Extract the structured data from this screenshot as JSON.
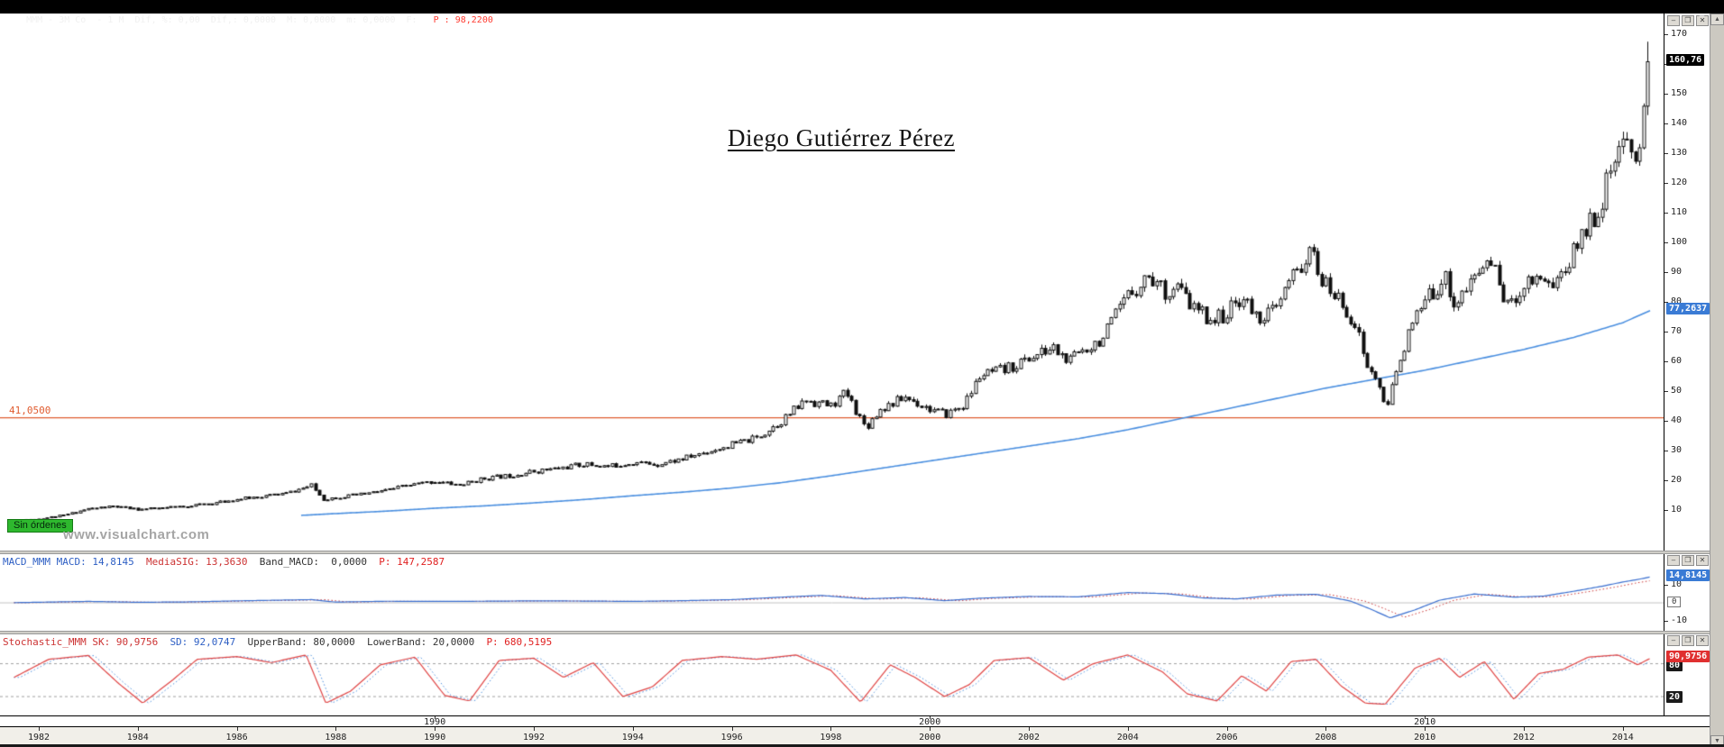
{
  "colors": {
    "accent_blue": "#3a7bd5",
    "ma_blue": "#4a8fe0",
    "macd_blue": "#3a6fd0",
    "signal_red": "#cc3333",
    "stoch_red": "#e04545",
    "stoch_blue": "#4a8fe0",
    "orange": "#e05c30",
    "green": "#2eb82e",
    "red_text": "#ff3b30",
    "band_gray": "#a0a0a0",
    "badge_black": "#000000"
  },
  "titlebar": {
    "segments": [
      {
        "text": "MMM - 3M Co  - 1 M ",
        "color": "#f0f0f0"
      },
      {
        "text": " Dif, %: 0,00  Dif,: 0,0000  M: 0,0000  m: 0,0000  F: ",
        "color": "#f0f0f0"
      },
      {
        "text": "  P : 98,2200",
        "color": "#ff3b30"
      }
    ],
    "window_controls": [
      "minimize",
      "maximize",
      "close"
    ]
  },
  "main_chart": {
    "annotation": "Diego Gutiérrez Pérez",
    "watermark": "www.visualchart.com",
    "orders_badge": "Sin órdenes",
    "hline_label": "41,0500",
    "last_price_badge": "160,76",
    "ma_badge": "77,2637",
    "axis_ticks": [
      170,
      160,
      150,
      140,
      130,
      120,
      110,
      100,
      90,
      80,
      70,
      60,
      50,
      40,
      30,
      20,
      10
    ]
  },
  "macd": {
    "header": [
      {
        "text": "MACD_MMM ",
        "color": "#2e5fc4"
      },
      {
        "text": "MACD: 14,8145  ",
        "color": "#2e5fc4"
      },
      {
        "text": "MediaSIG: 13,3630  ",
        "color": "#cc3333"
      },
      {
        "text": "Band_MACD:  0,0000  ",
        "color": "#333333"
      },
      {
        "text": "P: 147,2587",
        "color": "#e02020"
      }
    ],
    "axis_ticks": [
      10,
      0,
      -10
    ],
    "badge": "14,8145"
  },
  "stochastic": {
    "header": [
      {
        "text": "Stochastic_MMM ",
        "color": "#cc3333"
      },
      {
        "text": "SK: 90,9756  ",
        "color": "#cc3333"
      },
      {
        "text": "SD: 92,0747  ",
        "color": "#2e5fc4"
      },
      {
        "text": "UpperBand: 80,0000  ",
        "color": "#333333"
      },
      {
        "text": "LowerBand: 20,0000  ",
        "color": "#333333"
      },
      {
        "text": "P: 680,5195",
        "color": "#e02020"
      }
    ],
    "sk_badge": "90,9756",
    "upper_badge": "80",
    "lower_badge": "20"
  },
  "time_axis": {
    "years": [
      1982,
      1984,
      1986,
      1988,
      1990,
      1992,
      1994,
      1996,
      1998,
      2000,
      2002,
      2004,
      2006,
      2008,
      2010,
      2012,
      2014
    ],
    "decades": [
      1990,
      2000,
      2010
    ]
  },
  "chart_data": {
    "type": "candlestick+indicators",
    "title": "MMM - 3M Co - 1 M (monthly)",
    "x_range": [
      1981.5,
      2014.58
    ],
    "price_panel": {
      "type": "candlestick",
      "ylim": [
        4,
        172
      ],
      "yticks": [
        10,
        20,
        30,
        40,
        50,
        60,
        70,
        80,
        90,
        100,
        110,
        120,
        130,
        140,
        150,
        160,
        170
      ],
      "hline": 41.05,
      "last_close": 160.76,
      "ma_last": 77.2637,
      "close_anchors": [
        [
          1981.5,
          6.3
        ],
        [
          1982,
          7
        ],
        [
          1982.5,
          8.2
        ],
        [
          1983,
          10.4
        ],
        [
          1983.5,
          11.2
        ],
        [
          1984,
          10.2
        ],
        [
          1984.5,
          10.6
        ],
        [
          1985,
          11.4
        ],
        [
          1985.5,
          12.2
        ],
        [
          1986,
          13.6
        ],
        [
          1986.5,
          14.6
        ],
        [
          1987,
          15.6
        ],
        [
          1987.5,
          18.2
        ],
        [
          1987.75,
          13.6
        ],
        [
          1988,
          14.2
        ],
        [
          1988.5,
          15.2
        ],
        [
          1989,
          16.6
        ],
        [
          1989.5,
          18.4
        ],
        [
          1990,
          19.6
        ],
        [
          1990.5,
          18.4
        ],
        [
          1991,
          20.6
        ],
        [
          1991.5,
          21.6
        ],
        [
          1992,
          23
        ],
        [
          1992.5,
          24
        ],
        [
          1993,
          25.4
        ],
        [
          1993.5,
          24.6
        ],
        [
          1994,
          26
        ],
        [
          1994.5,
          25.4
        ],
        [
          1995,
          27.2
        ],
        [
          1995.5,
          29.6
        ],
        [
          1996,
          32
        ],
        [
          1996.5,
          34.2
        ],
        [
          1997,
          40
        ],
        [
          1997.5,
          47
        ],
        [
          1998,
          45
        ],
        [
          1998.3,
          49.5
        ],
        [
          1998.7,
          37.8
        ],
        [
          1999,
          44
        ],
        [
          1999.5,
          48
        ],
        [
          2000,
          44
        ],
        [
          2000.3,
          42
        ],
        [
          2000.7,
          45.5
        ],
        [
          2001,
          55
        ],
        [
          2001.5,
          57
        ],
        [
          2002,
          61
        ],
        [
          2002.5,
          64.5
        ],
        [
          2002.8,
          59.5
        ],
        [
          2003,
          63
        ],
        [
          2003.5,
          68
        ],
        [
          2004,
          82
        ],
        [
          2004.4,
          89
        ],
        [
          2004.8,
          83
        ],
        [
          2005,
          85
        ],
        [
          2005.3,
          78
        ],
        [
          2005.7,
          74
        ],
        [
          2006,
          76
        ],
        [
          2006.3,
          82
        ],
        [
          2006.6,
          74.5
        ],
        [
          2007,
          77.5
        ],
        [
          2007.3,
          88
        ],
        [
          2007.7,
          96.5
        ],
        [
          2007.95,
          86
        ],
        [
          2008.3,
          80
        ],
        [
          2008.6,
          72
        ],
        [
          2008.85,
          57
        ],
        [
          2009.05,
          54
        ],
        [
          2009.2,
          42.5
        ],
        [
          2009.5,
          62
        ],
        [
          2009.8,
          74
        ],
        [
          2010,
          80
        ],
        [
          2010.4,
          88.5
        ],
        [
          2010.6,
          79
        ],
        [
          2011,
          88
        ],
        [
          2011.3,
          95
        ],
        [
          2011.7,
          77.5
        ],
        [
          2012,
          86.5
        ],
        [
          2012.3,
          89
        ],
        [
          2012.6,
          86
        ],
        [
          2012.9,
          93
        ],
        [
          2013.2,
          104
        ],
        [
          2013.5,
          111
        ],
        [
          2013.8,
          126
        ],
        [
          2014,
          131
        ],
        [
          2014.15,
          134
        ],
        [
          2014.3,
          128.5
        ],
        [
          2014.45,
          145
        ],
        [
          2014.58,
          160.76
        ]
      ],
      "ma_anchors": [
        [
          1987.3,
          8.2
        ],
        [
          1988,
          8.8
        ],
        [
          1989,
          9.6
        ],
        [
          1990,
          10.6
        ],
        [
          1991,
          11.4
        ],
        [
          1992,
          12.4
        ],
        [
          1993,
          13.5
        ],
        [
          1994,
          14.8
        ],
        [
          1995,
          16
        ],
        [
          1996,
          17.4
        ],
        [
          1997,
          19.2
        ],
        [
          1998,
          21.5
        ],
        [
          1999,
          24
        ],
        [
          2000,
          26.5
        ],
        [
          2001,
          29
        ],
        [
          2002,
          31.5
        ],
        [
          2003,
          34
        ],
        [
          2004,
          37
        ],
        [
          2005,
          40.5
        ],
        [
          2006,
          44
        ],
        [
          2007,
          47.5
        ],
        [
          2008,
          51
        ],
        [
          2009,
          54
        ],
        [
          2010,
          57
        ],
        [
          2011,
          60.5
        ],
        [
          2012,
          64
        ],
        [
          2013,
          68
        ],
        [
          2014,
          73
        ],
        [
          2014.58,
          77.26
        ]
      ]
    },
    "macd_panel": {
      "type": "line",
      "ylim": [
        -14,
        22
      ],
      "yticks": [
        10,
        0,
        -10
      ],
      "macd_last": 14.8145,
      "signal_last": 13.363,
      "macd_anchors": [
        [
          1981.5,
          0.1
        ],
        [
          1983,
          0.8
        ],
        [
          1984,
          0.3
        ],
        [
          1985,
          0.5
        ],
        [
          1986,
          1.1
        ],
        [
          1987.5,
          1.8
        ],
        [
          1988,
          0.4
        ],
        [
          1989,
          0.9
        ],
        [
          1990,
          0.8
        ],
        [
          1991,
          0.9
        ],
        [
          1992,
          1.1
        ],
        [
          1993,
          1.0
        ],
        [
          1994,
          0.8
        ],
        [
          1995,
          1.2
        ],
        [
          1996,
          1.8
        ],
        [
          1997,
          3.2
        ],
        [
          1997.8,
          4.2
        ],
        [
          1998.7,
          2.2
        ],
        [
          1999.5,
          3.0
        ],
        [
          2000.3,
          1.2
        ],
        [
          2001,
          2.6
        ],
        [
          2002,
          3.6
        ],
        [
          2003,
          3.4
        ],
        [
          2004,
          5.8
        ],
        [
          2004.8,
          5.2
        ],
        [
          2005.5,
          2.8
        ],
        [
          2006.2,
          2.2
        ],
        [
          2007,
          4.4
        ],
        [
          2007.8,
          4.8
        ],
        [
          2008.5,
          1.0
        ],
        [
          2008.9,
          -3.5
        ],
        [
          2009.3,
          -8.5
        ],
        [
          2009.8,
          -4.0
        ],
        [
          2010.3,
          1.5
        ],
        [
          2011,
          5.0
        ],
        [
          2011.8,
          3.2
        ],
        [
          2012.4,
          3.8
        ],
        [
          2013,
          6.5
        ],
        [
          2013.6,
          9.5
        ],
        [
          2014,
          11.8
        ],
        [
          2014.3,
          13.2
        ],
        [
          2014.58,
          14.81
        ]
      ]
    },
    "stoch_panel": {
      "type": "line",
      "ylim": [
        0,
        100
      ],
      "bands": [
        80,
        20
      ],
      "sk_last": 90.9756,
      "sd_last": 92.0747,
      "sk_anchors": [
        [
          1981.5,
          55
        ],
        [
          1982.2,
          88
        ],
        [
          1983.0,
          95
        ],
        [
          1983.6,
          45
        ],
        [
          1984.1,
          8
        ],
        [
          1984.7,
          50
        ],
        [
          1985.2,
          88
        ],
        [
          1986.0,
          93
        ],
        [
          1986.7,
          82
        ],
        [
          1987.4,
          96
        ],
        [
          1987.8,
          8
        ],
        [
          1988.3,
          30
        ],
        [
          1988.9,
          78
        ],
        [
          1989.6,
          92
        ],
        [
          1990.2,
          22
        ],
        [
          1990.7,
          12
        ],
        [
          1991.3,
          86
        ],
        [
          1992.0,
          90
        ],
        [
          1992.6,
          55
        ],
        [
          1993.2,
          82
        ],
        [
          1993.8,
          20
        ],
        [
          1994.4,
          38
        ],
        [
          1995.0,
          86
        ],
        [
          1995.8,
          93
        ],
        [
          1996.5,
          88
        ],
        [
          1997.3,
          96
        ],
        [
          1998.0,
          68
        ],
        [
          1998.6,
          10
        ],
        [
          1999.2,
          78
        ],
        [
          1999.7,
          55
        ],
        [
          2000.3,
          20
        ],
        [
          2000.8,
          42
        ],
        [
          2001.3,
          86
        ],
        [
          2002.0,
          91
        ],
        [
          2002.7,
          50
        ],
        [
          2003.3,
          80
        ],
        [
          2004.0,
          96
        ],
        [
          2004.7,
          65
        ],
        [
          2005.2,
          25
        ],
        [
          2005.8,
          12
        ],
        [
          2006.3,
          58
        ],
        [
          2006.8,
          30
        ],
        [
          2007.3,
          84
        ],
        [
          2007.8,
          88
        ],
        [
          2008.3,
          40
        ],
        [
          2008.8,
          8
        ],
        [
          2009.2,
          6
        ],
        [
          2009.8,
          72
        ],
        [
          2010.3,
          90
        ],
        [
          2010.7,
          55
        ],
        [
          2011.2,
          84
        ],
        [
          2011.8,
          15
        ],
        [
          2012.3,
          62
        ],
        [
          2012.8,
          70
        ],
        [
          2013.3,
          92
        ],
        [
          2013.9,
          96
        ],
        [
          2014.3,
          78
        ],
        [
          2014.58,
          90.98
        ]
      ]
    }
  }
}
